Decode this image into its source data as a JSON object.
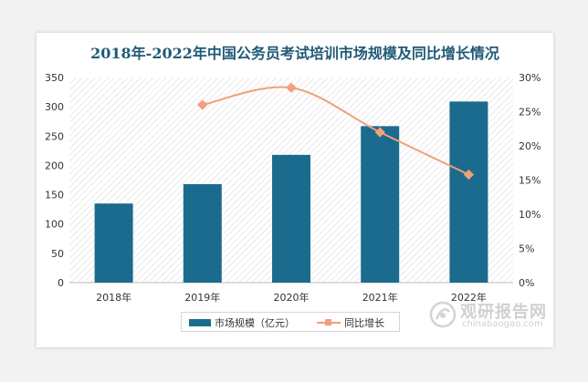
{
  "chart_data": {
    "type": "bar",
    "title": "2018年-2022年中国公务员考试培训市场规模及同比增长情况",
    "categories": [
      "2018年",
      "2019年",
      "2020年",
      "2021年",
      "2022年"
    ],
    "series": [
      {
        "name": "市场规模（亿元）",
        "type": "bar",
        "axis": "left",
        "values": [
          135,
          168,
          218,
          267,
          309
        ],
        "color": "#1b6b8f"
      },
      {
        "name": "同比增长",
        "type": "line",
        "axis": "right",
        "values": [
          null,
          26.0,
          28.5,
          22.0,
          15.8
        ],
        "color": "#f0a07a"
      }
    ],
    "y_left": {
      "min": 0,
      "max": 350,
      "ticks": [
        "0",
        "50",
        "100",
        "150",
        "200",
        "250",
        "300",
        "350"
      ]
    },
    "y_right": {
      "min": 0,
      "max": 30,
      "ticks": [
        "0%",
        "5%",
        "10%",
        "15%",
        "20%",
        "25%",
        "30%"
      ]
    },
    "legend_position": "bottom",
    "plot_background": "diagonal-hatch"
  },
  "watermark": {
    "name": "观研报告网",
    "url": "chinabaogao.com"
  }
}
